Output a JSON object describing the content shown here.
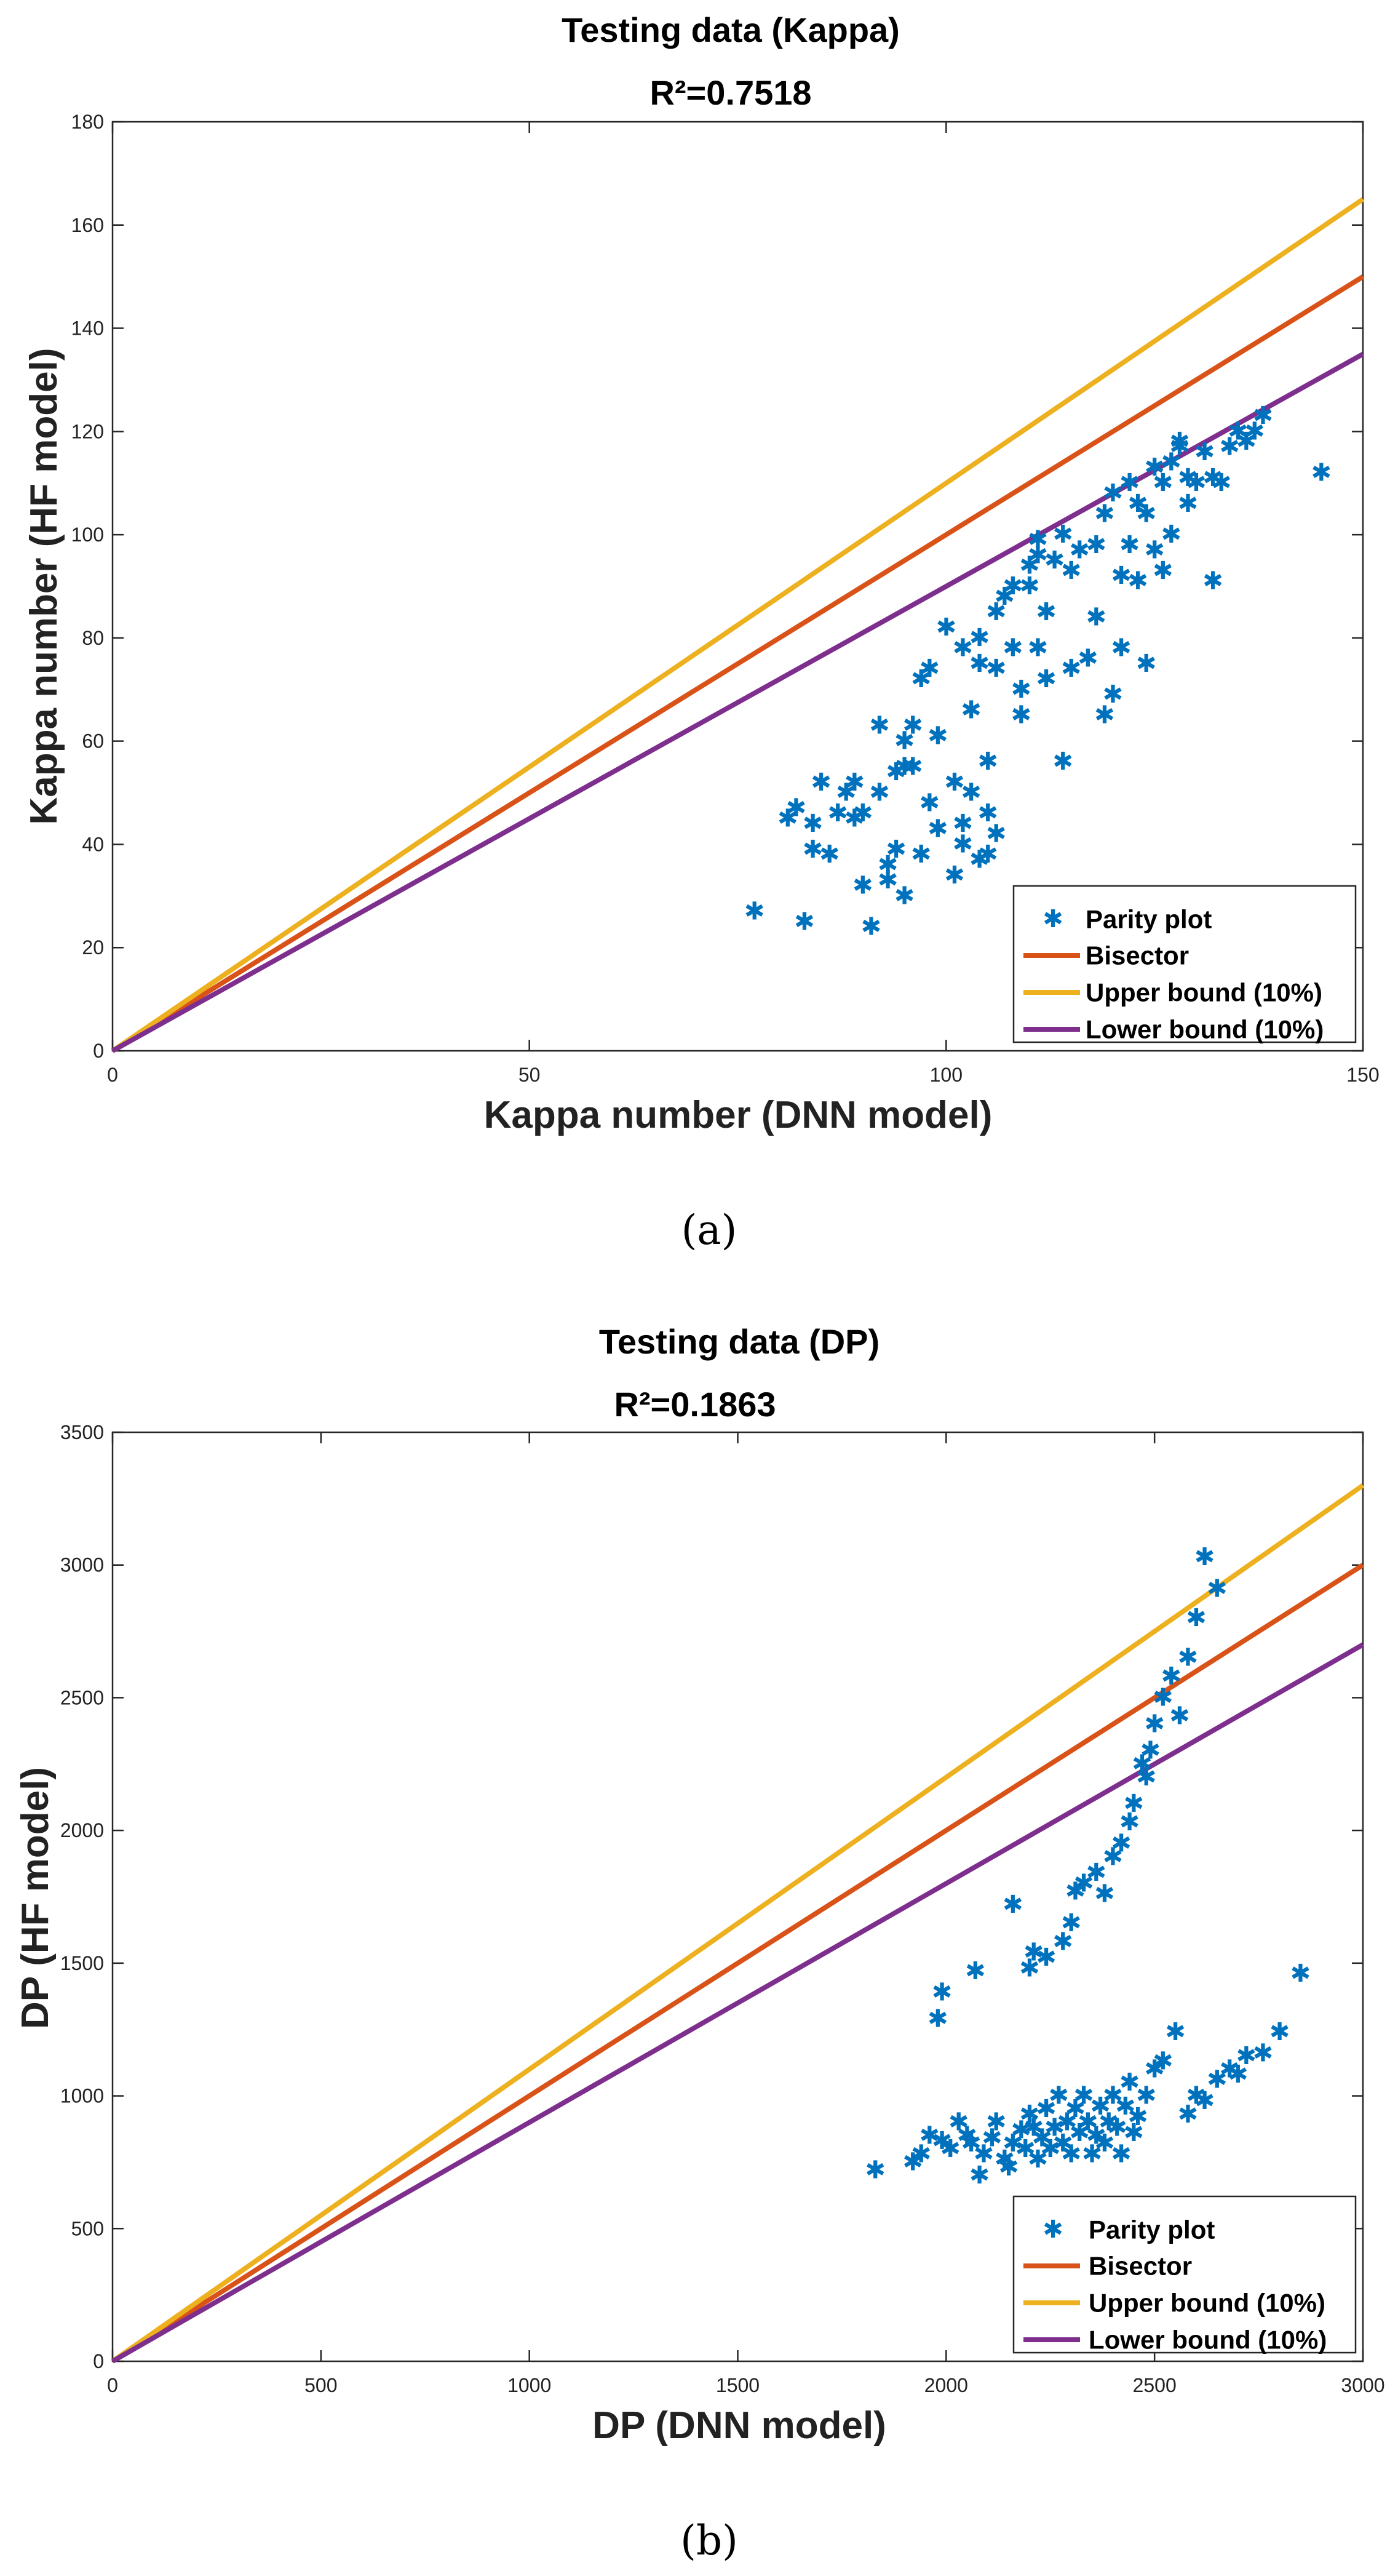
{
  "chart_data": [
    {
      "type": "scatter",
      "panel_label": "(a)",
      "title": "Testing data (Kappa)",
      "subtitle": "R²=0.7518",
      "xlabel": "Kappa number (DNN model)",
      "ylabel": "Kappa number (HF model)",
      "xlim": [
        0,
        150
      ],
      "ylim": [
        0,
        180
      ],
      "xticks": [
        0,
        50,
        100,
        150
      ],
      "yticks": [
        0,
        20,
        40,
        60,
        80,
        100,
        120,
        140,
        160,
        180
      ],
      "grid": false,
      "legend_position": "bottom-right",
      "series": [
        {
          "name": "Parity plot",
          "kind": "scatter",
          "marker": "*",
          "color": "#0072BD",
          "points": [
            [
              77,
              27
            ],
            [
              81,
              45
            ],
            [
              82,
              47
            ],
            [
              83,
              25
            ],
            [
              84,
              39
            ],
            [
              84,
              44
            ],
            [
              85,
              52
            ],
            [
              86,
              38
            ],
            [
              87,
              46
            ],
            [
              88,
              50
            ],
            [
              89,
              52
            ],
            [
              89,
              45
            ],
            [
              90,
              46
            ],
            [
              90,
              32
            ],
            [
              91,
              24
            ],
            [
              92,
              50
            ],
            [
              92,
              63
            ],
            [
              93,
              33
            ],
            [
              93,
              36
            ],
            [
              94,
              39
            ],
            [
              94,
              54
            ],
            [
              95,
              60
            ],
            [
              95,
              30
            ],
            [
              95,
              55
            ],
            [
              96,
              63
            ],
            [
              96,
              55
            ],
            [
              97,
              72
            ],
            [
              97,
              38
            ],
            [
              98,
              74
            ],
            [
              98,
              48
            ],
            [
              99,
              43
            ],
            [
              99,
              61
            ],
            [
              100,
              82
            ],
            [
              101,
              52
            ],
            [
              101,
              34
            ],
            [
              102,
              40
            ],
            [
              102,
              44
            ],
            [
              102,
              78
            ],
            [
              103,
              66
            ],
            [
              103,
              50
            ],
            [
              104,
              37
            ],
            [
              104,
              75
            ],
            [
              104,
              80
            ],
            [
              105,
              38
            ],
            [
              105,
              56
            ],
            [
              105,
              46
            ],
            [
              106,
              85
            ],
            [
              106,
              74
            ],
            [
              106,
              42
            ],
            [
              107,
              88
            ],
            [
              108,
              90
            ],
            [
              108,
              78
            ],
            [
              109,
              70
            ],
            [
              109,
              65
            ],
            [
              110,
              90
            ],
            [
              110,
              94
            ],
            [
              111,
              96
            ],
            [
              111,
              78
            ],
            [
              111,
              99
            ],
            [
              112,
              72
            ],
            [
              112,
              85
            ],
            [
              113,
              95
            ],
            [
              114,
              100
            ],
            [
              114,
              56
            ],
            [
              115,
              93
            ],
            [
              115,
              74
            ],
            [
              116,
              97
            ],
            [
              117,
              76
            ],
            [
              118,
              98
            ],
            [
              118,
              84
            ],
            [
              119,
              65
            ],
            [
              119,
              104
            ],
            [
              120,
              108
            ],
            [
              120,
              69
            ],
            [
              121,
              92
            ],
            [
              121,
              78
            ],
            [
              122,
              98
            ],
            [
              122,
              110
            ],
            [
              123,
              106
            ],
            [
              123,
              91
            ],
            [
              124,
              75
            ],
            [
              124,
              104
            ],
            [
              125,
              113
            ],
            [
              125,
              97
            ],
            [
              126,
              110
            ],
            [
              126,
              93
            ],
            [
              127,
              114
            ],
            [
              127,
              100
            ],
            [
              128,
              117
            ],
            [
              128,
              118
            ],
            [
              129,
              106
            ],
            [
              129,
              111
            ],
            [
              130,
              110
            ],
            [
              131,
              116
            ],
            [
              132,
              111
            ],
            [
              132,
              91
            ],
            [
              133,
              110
            ],
            [
              134,
              117
            ],
            [
              135,
              120
            ],
            [
              136,
              118
            ],
            [
              137,
              120
            ],
            [
              138,
              123
            ],
            [
              145,
              112
            ]
          ]
        },
        {
          "name": "Bisector",
          "kind": "line",
          "color": "#D95319",
          "x": [
            0,
            150
          ],
          "y": [
            0,
            150
          ]
        },
        {
          "name": "Upper bound (10%)",
          "kind": "line",
          "color": "#EDB120",
          "x": [
            0,
            150
          ],
          "y": [
            0,
            165
          ]
        },
        {
          "name": "Lower bound (10%)",
          "kind": "line",
          "color": "#7E2F8E",
          "x": [
            0,
            150
          ],
          "y": [
            0,
            135
          ]
        }
      ]
    },
    {
      "type": "scatter",
      "panel_label": "(b)",
      "title": "Testing data (DP)",
      "subtitle": "R²=0.1863",
      "xlabel": "DP (DNN model)",
      "ylabel": "DP (HF model)",
      "xlim": [
        0,
        3000
      ],
      "ylim": [
        0,
        3500
      ],
      "xticks": [
        0,
        500,
        1000,
        1500,
        2000,
        2500,
        3000
      ],
      "yticks": [
        0,
        500,
        1000,
        1500,
        2000,
        2500,
        3000,
        3500
      ],
      "grid": false,
      "legend_position": "bottom-right",
      "series": [
        {
          "name": "Parity plot",
          "kind": "scatter",
          "marker": "*",
          "color": "#0072BD",
          "points": [
            [
              1830,
              720
            ],
            [
              1920,
              750
            ],
            [
              1940,
              780
            ],
            [
              1960,
              850
            ],
            [
              1990,
              830
            ],
            [
              2010,
              800
            ],
            [
              2030,
              900
            ],
            [
              2050,
              850
            ],
            [
              2060,
              820
            ],
            [
              2080,
              700
            ],
            [
              2090,
              780
            ],
            [
              2110,
              840
            ],
            [
              2120,
              900
            ],
            [
              2140,
              760
            ],
            [
              2150,
              730
            ],
            [
              2160,
              820
            ],
            [
              2180,
              870
            ],
            [
              2190,
              800
            ],
            [
              2200,
              930
            ],
            [
              2210,
              880
            ],
            [
              2220,
              760
            ],
            [
              2230,
              840
            ],
            [
              2240,
              950
            ],
            [
              2250,
              800
            ],
            [
              2260,
              880
            ],
            [
              2270,
              1000
            ],
            [
              2280,
              820
            ],
            [
              2290,
              900
            ],
            [
              2300,
              780
            ],
            [
              2310,
              950
            ],
            [
              2320,
              860
            ],
            [
              2330,
              1000
            ],
            [
              2340,
              900
            ],
            [
              2350,
              780
            ],
            [
              2360,
              850
            ],
            [
              2370,
              960
            ],
            [
              2380,
              820
            ],
            [
              2390,
              900
            ],
            [
              2400,
              1000
            ],
            [
              2410,
              880
            ],
            [
              2420,
              780
            ],
            [
              2430,
              960
            ],
            [
              2440,
              1050
            ],
            [
              2450,
              860
            ],
            [
              2460,
              920
            ],
            [
              2480,
              1000
            ],
            [
              2500,
              1100
            ],
            [
              2520,
              1130
            ],
            [
              2550,
              1240
            ],
            [
              2580,
              930
            ],
            [
              2600,
              1000
            ],
            [
              2620,
              980
            ],
            [
              2650,
              1060
            ],
            [
              2680,
              1100
            ],
            [
              2700,
              1080
            ],
            [
              2720,
              1150
            ],
            [
              2760,
              1160
            ],
            [
              2800,
              1240
            ],
            [
              2850,
              1460
            ],
            [
              1980,
              1290
            ],
            [
              1990,
              1390
            ],
            [
              2070,
              1470
            ],
            [
              2160,
              1720
            ],
            [
              2200,
              1480
            ],
            [
              2210,
              1540
            ],
            [
              2240,
              1520
            ],
            [
              2280,
              1580
            ],
            [
              2300,
              1650
            ],
            [
              2310,
              1770
            ],
            [
              2330,
              1800
            ],
            [
              2360,
              1840
            ],
            [
              2380,
              1760
            ],
            [
              2400,
              1900
            ],
            [
              2420,
              1950
            ],
            [
              2440,
              2030
            ],
            [
              2450,
              2100
            ],
            [
              2470,
              2250
            ],
            [
              2480,
              2200
            ],
            [
              2490,
              2300
            ],
            [
              2500,
              2400
            ],
            [
              2520,
              2500
            ],
            [
              2540,
              2580
            ],
            [
              2560,
              2430
            ],
            [
              2580,
              2650
            ],
            [
              2600,
              2800
            ],
            [
              2620,
              3030
            ],
            [
              2650,
              2910
            ]
          ]
        },
        {
          "name": "Bisector",
          "kind": "line",
          "color": "#D95319",
          "x": [
            0,
            3000
          ],
          "y": [
            0,
            3000
          ]
        },
        {
          "name": "Upper bound (10%)",
          "kind": "line",
          "color": "#EDB120",
          "x": [
            0,
            3000
          ],
          "y": [
            0,
            3300
          ]
        },
        {
          "name": "Lower bound (10%)",
          "kind": "line",
          "color": "#7E2F8E",
          "x": [
            0,
            3000
          ],
          "y": [
            0,
            2700
          ]
        }
      ]
    }
  ]
}
